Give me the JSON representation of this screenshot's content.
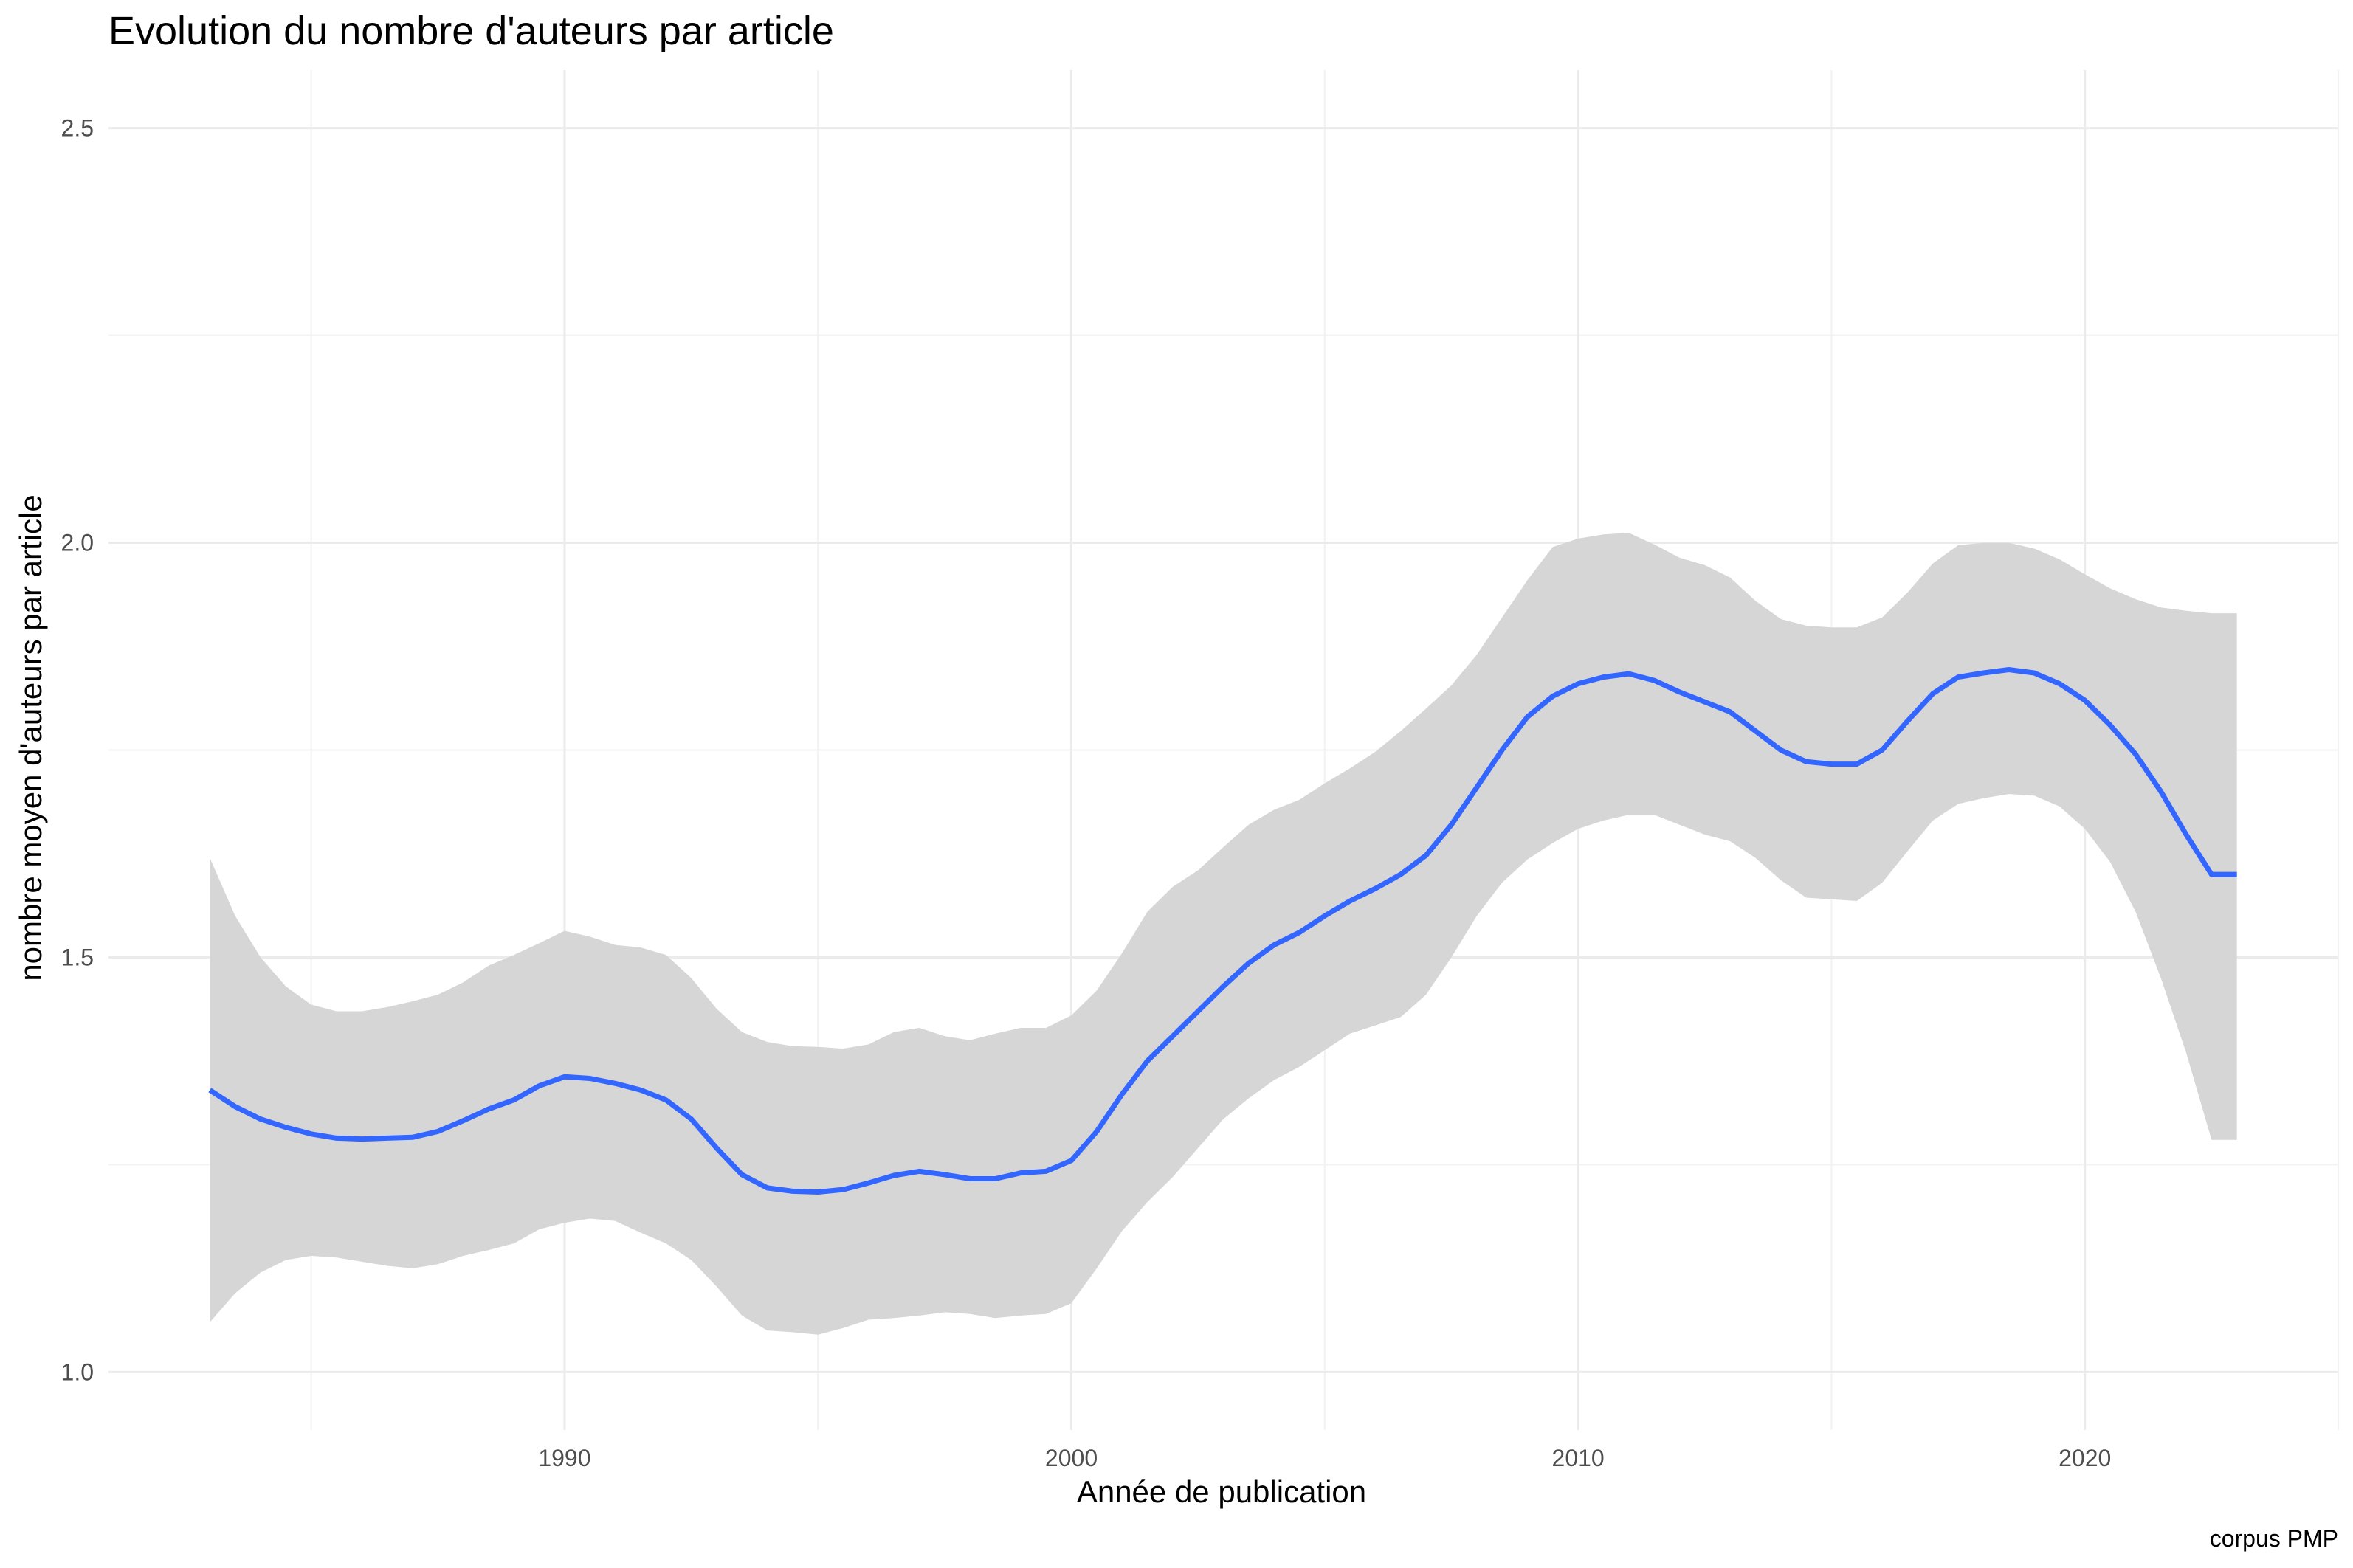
{
  "chart_data": {
    "type": "line",
    "title": "Evolution du nombre d'auteurs par article",
    "xlabel": "Année de publication",
    "ylabel": "nombre moyen d'auteurs par article",
    "caption": "corpus PMP",
    "xlim": [
      1981,
      2025
    ],
    "ylim": [
      0.93,
      2.57
    ],
    "x_ticks": [
      1990,
      2000,
      2010,
      2020
    ],
    "y_ticks": [
      "1.0",
      "1.5",
      "2.0",
      "2.5"
    ],
    "grid": true,
    "line_color": "#3366FF",
    "band_color": "#D6D6D6",
    "series": [
      {
        "type": "smooth_with_confidence_band",
        "x": [
          1983,
          1983.5,
          1984,
          1984.5,
          1985,
          1985.5,
          1986,
          1986.5,
          1987,
          1987.5,
          1988,
          1988.5,
          1989,
          1989.5,
          1990,
          1990.5,
          1991,
          1991.5,
          1992,
          1992.5,
          1993,
          1993.5,
          1994,
          1994.5,
          1995,
          1995.5,
          1996,
          1996.5,
          1997,
          1997.5,
          1998,
          1998.5,
          1999,
          1999.5,
          2000,
          2000.5,
          2001,
          2001.5,
          2002,
          2002.5,
          2003,
          2003.5,
          2004,
          2004.5,
          2005,
          2005.5,
          2006,
          2006.5,
          2007,
          2007.5,
          2008,
          2008.5,
          2009,
          2009.5,
          2010,
          2010.5,
          2011,
          2011.5,
          2012,
          2012.5,
          2013,
          2013.5,
          2014,
          2014.5,
          2015,
          2015.5,
          2016,
          2016.5,
          2017,
          2017.5,
          2018,
          2018.5,
          2019,
          2019.5,
          2020,
          2020.5,
          2021,
          2021.5,
          2022,
          2022.5,
          2023
        ],
        "y": [
          1.34,
          1.32,
          1.305,
          1.295,
          1.287,
          1.282,
          1.281,
          1.282,
          1.283,
          1.29,
          1.303,
          1.317,
          1.328,
          1.345,
          1.356,
          1.354,
          1.348,
          1.34,
          1.328,
          1.305,
          1.27,
          1.238,
          1.222,
          1.218,
          1.217,
          1.22,
          1.228,
          1.237,
          1.242,
          1.238,
          1.233,
          1.233,
          1.24,
          1.242,
          1.255,
          1.29,
          1.335,
          1.375,
          1.405,
          1.435,
          1.465,
          1.493,
          1.515,
          1.53,
          1.55,
          1.568,
          1.583,
          1.6,
          1.623,
          1.66,
          1.705,
          1.75,
          1.79,
          1.815,
          1.83,
          1.838,
          1.842,
          1.834,
          1.82,
          1.808,
          1.796,
          1.773,
          1.75,
          1.736,
          1.733,
          1.733,
          1.75,
          1.785,
          1.818,
          1.838,
          1.843,
          1.847,
          1.843,
          1.83,
          1.81,
          1.78,
          1.745,
          1.7,
          1.648,
          1.6,
          1.6
        ],
        "ymin": [
          1.06,
          1.095,
          1.12,
          1.135,
          1.14,
          1.138,
          1.133,
          1.128,
          1.125,
          1.13,
          1.14,
          1.147,
          1.155,
          1.172,
          1.18,
          1.185,
          1.182,
          1.168,
          1.155,
          1.135,
          1.103,
          1.068,
          1.05,
          1.048,
          1.045,
          1.053,
          1.063,
          1.065,
          1.068,
          1.072,
          1.07,
          1.065,
          1.068,
          1.07,
          1.083,
          1.125,
          1.17,
          1.205,
          1.235,
          1.27,
          1.305,
          1.33,
          1.352,
          1.368,
          1.388,
          1.408,
          1.418,
          1.428,
          1.455,
          1.5,
          1.55,
          1.59,
          1.618,
          1.638,
          1.655,
          1.665,
          1.672,
          1.672,
          1.66,
          1.648,
          1.64,
          1.62,
          1.593,
          1.572,
          1.57,
          1.568,
          1.59,
          1.628,
          1.665,
          1.685,
          1.692,
          1.697,
          1.695,
          1.682,
          1.655,
          1.615,
          1.555,
          1.475,
          1.385,
          1.28,
          1.28
        ],
        "ymax": [
          1.62,
          1.55,
          1.5,
          1.465,
          1.443,
          1.435,
          1.435,
          1.44,
          1.447,
          1.455,
          1.47,
          1.49,
          1.503,
          1.517,
          1.532,
          1.525,
          1.515,
          1.512,
          1.503,
          1.475,
          1.438,
          1.41,
          1.398,
          1.393,
          1.392,
          1.39,
          1.395,
          1.41,
          1.415,
          1.405,
          1.4,
          1.408,
          1.415,
          1.415,
          1.43,
          1.46,
          1.505,
          1.555,
          1.585,
          1.605,
          1.633,
          1.66,
          1.678,
          1.69,
          1.71,
          1.728,
          1.748,
          1.773,
          1.8,
          1.828,
          1.865,
          1.91,
          1.955,
          1.995,
          2.005,
          2.01,
          2.012,
          1.998,
          1.982,
          1.973,
          1.958,
          1.93,
          1.908,
          1.9,
          1.898,
          1.898,
          1.91,
          1.94,
          1.975,
          1.997,
          2.0,
          2.0,
          1.993,
          1.98,
          1.962,
          1.945,
          1.932,
          1.922,
          1.918,
          1.915,
          1.915
        ]
      }
    ]
  }
}
